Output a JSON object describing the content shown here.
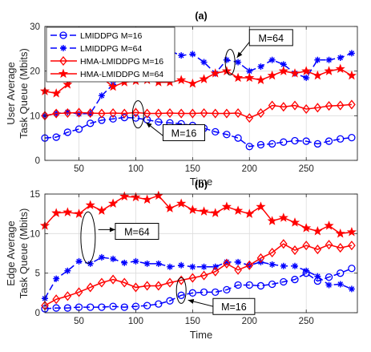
{
  "chart_data": [
    {
      "type": "line",
      "title": "(a)",
      "xlabel": "Time",
      "ylabel": [
        "User Average",
        "Task Queue (Mbits)"
      ],
      "xlim": [
        20,
        295
      ],
      "ylim": [
        0,
        30
      ],
      "xticks": [
        50,
        100,
        150,
        200,
        250
      ],
      "yticks": [
        0,
        10,
        20,
        30
      ],
      "grid": true,
      "legend_position": "top-left",
      "series": [
        {
          "name": "LMIDDPG M=16",
          "color": "#0000ff",
          "marker": "circle",
          "dash": true,
          "x": [
            20,
            30,
            40,
            50,
            60,
            70,
            80,
            90,
            100,
            110,
            120,
            130,
            140,
            150,
            160,
            170,
            180,
            190,
            200,
            210,
            220,
            230,
            240,
            250,
            260,
            270,
            280,
            290
          ],
          "y": [
            5,
            5.2,
            6.3,
            7,
            8.3,
            9,
            9.3,
            9.6,
            9.5,
            9.1,
            8.6,
            8.4,
            8.2,
            7.8,
            7.2,
            6.4,
            5.8,
            5.0,
            3.1,
            3.5,
            3.7,
            4.1,
            4.4,
            4.3,
            3.7,
            4.3,
            4.8,
            5.1
          ]
        },
        {
          "name": "LMIDDPG M=64",
          "color": "#0000ff",
          "marker": "asterisk",
          "dash": true,
          "x": [
            20,
            30,
            40,
            50,
            60,
            70,
            80,
            90,
            100,
            110,
            120,
            130,
            140,
            150,
            160,
            170,
            180,
            190,
            200,
            210,
            220,
            230,
            240,
            250,
            260,
            270,
            280,
            290
          ],
          "y": [
            10,
            10.5,
            10.8,
            10.4,
            10.5,
            14.5,
            17,
            19.5,
            21,
            24,
            24,
            24.5,
            23.5,
            23.8,
            22,
            19.5,
            22.5,
            22,
            20,
            21,
            22.5,
            21.5,
            19.5,
            18.5,
            22.5,
            22.5,
            23,
            24
          ]
        },
        {
          "name": "HMA-LMIDDPG M=16",
          "color": "#ff0000",
          "marker": "diamond",
          "dash": false,
          "x": [
            20,
            30,
            40,
            50,
            60,
            70,
            80,
            90,
            100,
            110,
            120,
            130,
            140,
            150,
            160,
            170,
            180,
            190,
            200,
            210,
            220,
            230,
            240,
            250,
            260,
            270,
            280,
            290
          ],
          "y": [
            10,
            10.5,
            10.6,
            10.7,
            10.6,
            10.5,
            10.6,
            10.5,
            10.7,
            10.5,
            10.5,
            10.6,
            10.5,
            10.5,
            10.6,
            10.5,
            10.5,
            10.6,
            9.5,
            10.6,
            12.3,
            12.0,
            12.3,
            11.5,
            11.8,
            12.2,
            12.3,
            12.5
          ]
        },
        {
          "name": "HMA-LMIDDPG M=64",
          "color": "#ff0000",
          "marker": "star",
          "dash": false,
          "x": [
            20,
            30,
            40,
            50,
            60,
            70,
            80,
            90,
            100,
            110,
            120,
            130,
            140,
            150,
            160,
            170,
            180,
            190,
            200,
            210,
            220,
            230,
            240,
            250,
            260,
            270,
            280,
            290
          ],
          "y": [
            15.5,
            15,
            17,
            19.5,
            18.5,
            18.5,
            16.5,
            17.5,
            17.8,
            18,
            17.5,
            17.5,
            18,
            17.2,
            18.2,
            19.5,
            20,
            18.5,
            18.5,
            18,
            19,
            20,
            19.5,
            20,
            19,
            20,
            20.5,
            19
          ]
        }
      ],
      "annotations": [
        {
          "text": "M=64",
          "x": 185,
          "y": 23.5
        },
        {
          "text": "M=16",
          "x": 100,
          "y": 11
        }
      ]
    },
    {
      "type": "line",
      "title": "(b)",
      "xlabel": "Time",
      "ylabel": [
        "Edge Average",
        "Task Queue (Mbits)"
      ],
      "xlim": [
        20,
        295
      ],
      "ylim": [
        0,
        15
      ],
      "xticks": [
        50,
        100,
        150,
        200,
        250
      ],
      "yticks": [
        0,
        5,
        10,
        15
      ],
      "grid": true,
      "series": [
        {
          "name": "LMIDDPG M=16",
          "color": "#0000ff",
          "marker": "circle",
          "dash": true,
          "x": [
            20,
            30,
            40,
            50,
            60,
            70,
            80,
            90,
            100,
            110,
            120,
            130,
            140,
            150,
            160,
            170,
            180,
            190,
            200,
            210,
            220,
            230,
            240,
            250,
            260,
            270,
            280,
            290
          ],
          "y": [
            0.5,
            0.6,
            0.6,
            0.7,
            0.7,
            0.7,
            0.8,
            0.7,
            0.8,
            0.9,
            1.1,
            1.5,
            2.2,
            2.5,
            2.6,
            2.6,
            2.9,
            3.5,
            3.5,
            3.4,
            3.6,
            3.9,
            4.2,
            5.0,
            4.0,
            4.5,
            5.0,
            5.6
          ]
        },
        {
          "name": "LMIDDPG M=64",
          "color": "#0000ff",
          "marker": "asterisk",
          "dash": true,
          "x": [
            20,
            30,
            40,
            50,
            60,
            70,
            80,
            90,
            100,
            110,
            120,
            130,
            140,
            150,
            160,
            170,
            180,
            190,
            200,
            210,
            220,
            230,
            240,
            250,
            260,
            270,
            280,
            290
          ],
          "y": [
            1.8,
            4.3,
            5.3,
            6.5,
            6.2,
            7.0,
            6.8,
            6.3,
            6.5,
            6.2,
            6.2,
            5.8,
            6.0,
            5.8,
            5.8,
            5.8,
            6.4,
            6.4,
            6.0,
            6.4,
            6.1,
            5.9,
            5.9,
            5.3,
            4.6,
            3.5,
            3.6,
            3.0
          ]
        },
        {
          "name": "HMA-LMIDDPG M=16",
          "color": "#ff0000",
          "marker": "diamond",
          "dash": false,
          "x": [
            20,
            30,
            40,
            50,
            60,
            70,
            80,
            90,
            100,
            110,
            120,
            130,
            140,
            150,
            160,
            170,
            180,
            190,
            200,
            210,
            220,
            230,
            240,
            250,
            260,
            270,
            280,
            290
          ],
          "y": [
            0.9,
            1.7,
            2.1,
            2.6,
            3.2,
            3.8,
            4.2,
            3.8,
            3.2,
            3.4,
            3.4,
            3.8,
            4.1,
            4.4,
            4.7,
            5.2,
            6.2,
            5.4,
            6.0,
            6.9,
            7.6,
            8.7,
            7.9,
            8.5,
            8.0,
            8.6,
            8.2,
            8.5
          ]
        },
        {
          "name": "HMA-LMIDDPG M=64",
          "color": "#ff0000",
          "marker": "star",
          "dash": false,
          "x": [
            20,
            30,
            40,
            50,
            60,
            70,
            80,
            90,
            100,
            110,
            120,
            130,
            140,
            150,
            160,
            170,
            180,
            190,
            200,
            210,
            220,
            230,
            240,
            250,
            260,
            270,
            280,
            290
          ],
          "y": [
            11,
            12.6,
            12.7,
            12.5,
            13.6,
            12.9,
            13.8,
            14.7,
            14.6,
            14.3,
            14.8,
            13.2,
            13.8,
            13.0,
            12.8,
            12.6,
            13.4,
            12.9,
            12.5,
            13.4,
            11.6,
            12.0,
            11.4,
            10.7,
            10.3,
            11.0,
            10.0,
            10.2
          ]
        }
      ],
      "annotations": [
        {
          "text": "M=64",
          "x": 60,
          "y": 10.5
        },
        {
          "text": "M=16",
          "x": 140,
          "y": 2.5
        }
      ]
    }
  ]
}
